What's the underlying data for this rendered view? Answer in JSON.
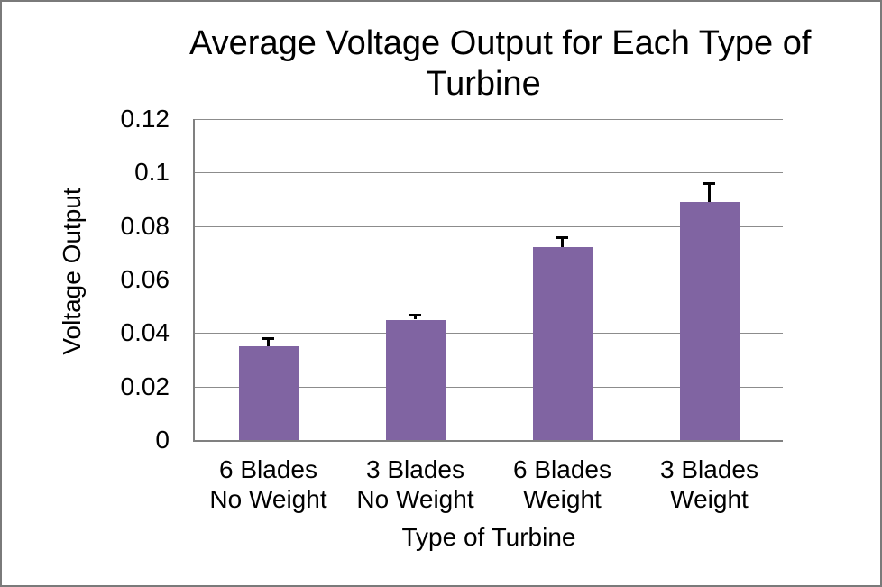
{
  "window": {
    "background": "#FFFFFF",
    "frame_border_color": "#7A7A7A"
  },
  "chart_data": {
    "type": "bar",
    "title": "Average Voltage Output for Each Type of Turbine",
    "title_lines": [
      "Average Voltage Output for Each Type of",
      "Turbine"
    ],
    "xlabel": "Type of Turbine",
    "ylabel": "Voltage Output",
    "categories": [
      "6 Blades\nNo Weight",
      "3 Blades\nNo Weight",
      "6 Blades\nWeight",
      "3 Blades\nWeight"
    ],
    "values": [
      0.035,
      0.045,
      0.072,
      0.089
    ],
    "error_plus": [
      0.003,
      0.002,
      0.004,
      0.007
    ],
    "ylim": [
      0,
      0.12
    ],
    "ytick_step": 0.02,
    "ytick_labels": [
      "0",
      "0.02",
      "0.04",
      "0.06",
      "0.08",
      "0.1",
      "0.12"
    ],
    "grid": true,
    "legend": false,
    "colors": {
      "bar": "#8064A2",
      "error_bar": "#000000",
      "gridline": "#8C8C8C",
      "axis": "#808080",
      "text": "#000000"
    }
  }
}
